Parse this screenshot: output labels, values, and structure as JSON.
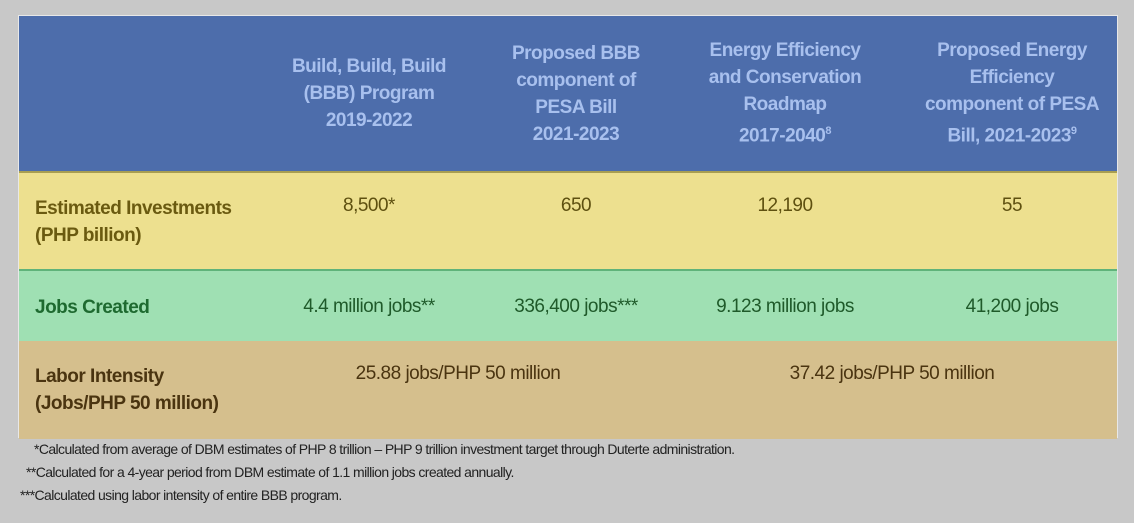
{
  "header": {
    "columns": [
      {
        "text": "Build, Build, Build (BBB) Program 2019-2022",
        "lines": [
          "Build, Build, Build",
          "(BBB) Program",
          "2019-2022"
        ],
        "sup": ""
      },
      {
        "lines": [
          "Proposed BBB",
          "component of",
          "PESA Bill",
          "2021-2023"
        ],
        "sup": ""
      },
      {
        "lines": [
          "Energy Efficiency",
          "and Conservation",
          "Roadmap",
          "2017-2040"
        ],
        "sup": "8"
      },
      {
        "lines": [
          "Proposed Energy",
          "Efficiency",
          "component of PESA",
          "Bill, 2021-2023"
        ],
        "sup": "9"
      }
    ]
  },
  "rows": {
    "investments": {
      "label": [
        "Estimated Investments",
        "(PHP billion)"
      ],
      "values": [
        "8,500*",
        "650",
        "12,190",
        "55"
      ]
    },
    "jobs": {
      "label": "Jobs Created",
      "values": [
        "4.4 million jobs**",
        "336,400 jobs***",
        "9.123 million jobs",
        "41,200 jobs"
      ]
    },
    "labor": {
      "label": [
        "Labor Intensity",
        "(Jobs/PHP 50 million)"
      ],
      "values": [
        "25.88 jobs/PHP 50 million",
        "37.42 jobs/PHP 50 million"
      ]
    }
  },
  "footnotes": [
    "*Calculated from average of DBM estimates of PHP 8 trillion – PHP 9 trillion investment target through Duterte administration.",
    "**Calculated for a 4-year period from DBM estimate of 1.1 million jobs created annually.",
    "***Calculated using labor intensity of entire BBB program."
  ],
  "colors": {
    "header": "#4d6dab",
    "investments": "#ede08f",
    "jobs": "#9fe0b3",
    "labor": "#d5bf8d"
  }
}
